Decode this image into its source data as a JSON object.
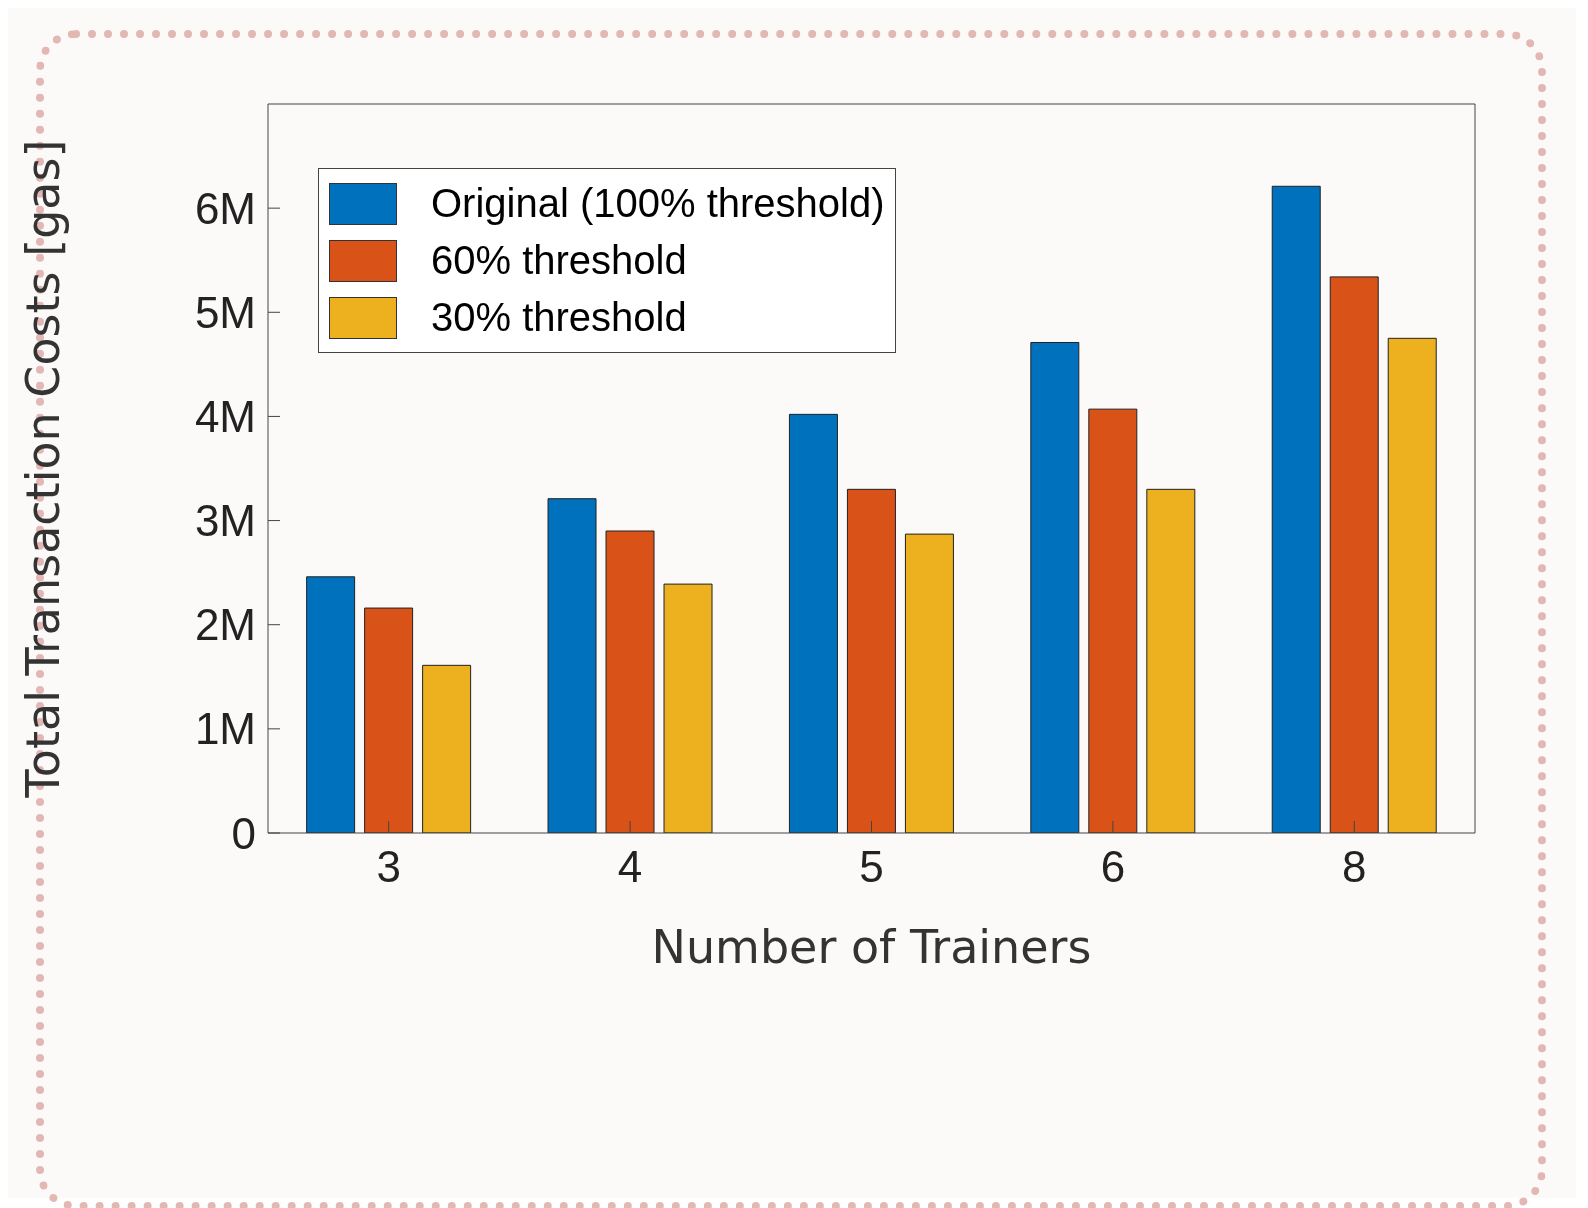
{
  "chart_data": {
    "type": "bar",
    "xlabel": "Number of Trainers",
    "ylabel": "Total Transaction Costs [gas]",
    "categories": [
      "3",
      "4",
      "5",
      "6",
      "8"
    ],
    "series": [
      {
        "name": "Original (100% threshold)",
        "color": "#0072bd",
        "values": [
          2460000,
          3210000,
          4020000,
          4710000,
          6210000
        ]
      },
      {
        "name": "60% threshold",
        "color": "#d95319",
        "values": [
          2160000,
          2900000,
          3300000,
          4070000,
          5340000
        ]
      },
      {
        "name": "30% threshold",
        "color": "#edb120",
        "values": [
          1610000,
          2390000,
          2870000,
          3300000,
          4750000
        ]
      }
    ],
    "ylim": [
      0,
      7000000
    ],
    "yticks": [
      0,
      {
        "value": 1000000,
        "label": "1M"
      },
      {
        "value": 2000000,
        "label": "2M"
      },
      {
        "value": 3000000,
        "label": "3M"
      },
      {
        "value": 4000000,
        "label": "4M"
      },
      {
        "value": 5000000,
        "label": "5M"
      },
      {
        "value": 6000000,
        "label": "6M"
      }
    ],
    "grid": false,
    "legend": "top left"
  }
}
